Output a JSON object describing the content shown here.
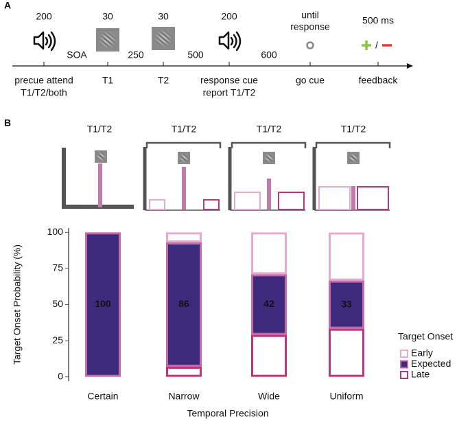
{
  "panel_a": {
    "label": "A",
    "durations": [
      "200",
      "30",
      "30",
      "200",
      "500 ms"
    ],
    "until": [
      "until",
      "response"
    ],
    "intervals": [
      "SOA",
      "250",
      "500",
      "600"
    ],
    "events": [
      [
        "precue attend",
        "T1/T2/both"
      ],
      [
        "T1"
      ],
      [
        "T2"
      ],
      [
        "response cue",
        "report T1/T2"
      ],
      [
        "go cue"
      ],
      [
        "feedback"
      ]
    ],
    "feedback_separator": "/"
  },
  "panel_b": {
    "label": "B",
    "schematic_labels": [
      "T1/T2",
      "T1/T2",
      "T1/T2",
      "T1/T2"
    ]
  },
  "chart_data": {
    "type": "stacked_bar",
    "categories": [
      "Certain",
      "Narrow",
      "Wide",
      "Uniform"
    ],
    "series": [
      {
        "name": "Early",
        "color": "#e6a9d0",
        "fill": "#ffffff",
        "values": [
          0,
          7,
          29,
          33.3
        ]
      },
      {
        "name": "Expected",
        "color": "#c46aa9",
        "fill": "#3d2a7c",
        "values": [
          100,
          86,
          42,
          33.3
        ],
        "value_labels": [
          "100",
          "86",
          "42",
          "33"
        ]
      },
      {
        "name": "Late",
        "color": "#b8387b",
        "fill": "#ffffff",
        "values": [
          0,
          7,
          29,
          33.3
        ]
      }
    ],
    "xlabel": "Temporal Precision",
    "ylabel": "Target Onset Probability (%)",
    "ylim": [
      -3,
      103
    ],
    "yticks": [
      0,
      25,
      50,
      75,
      100
    ],
    "legend_title": "Target Onset",
    "legend": "right"
  }
}
